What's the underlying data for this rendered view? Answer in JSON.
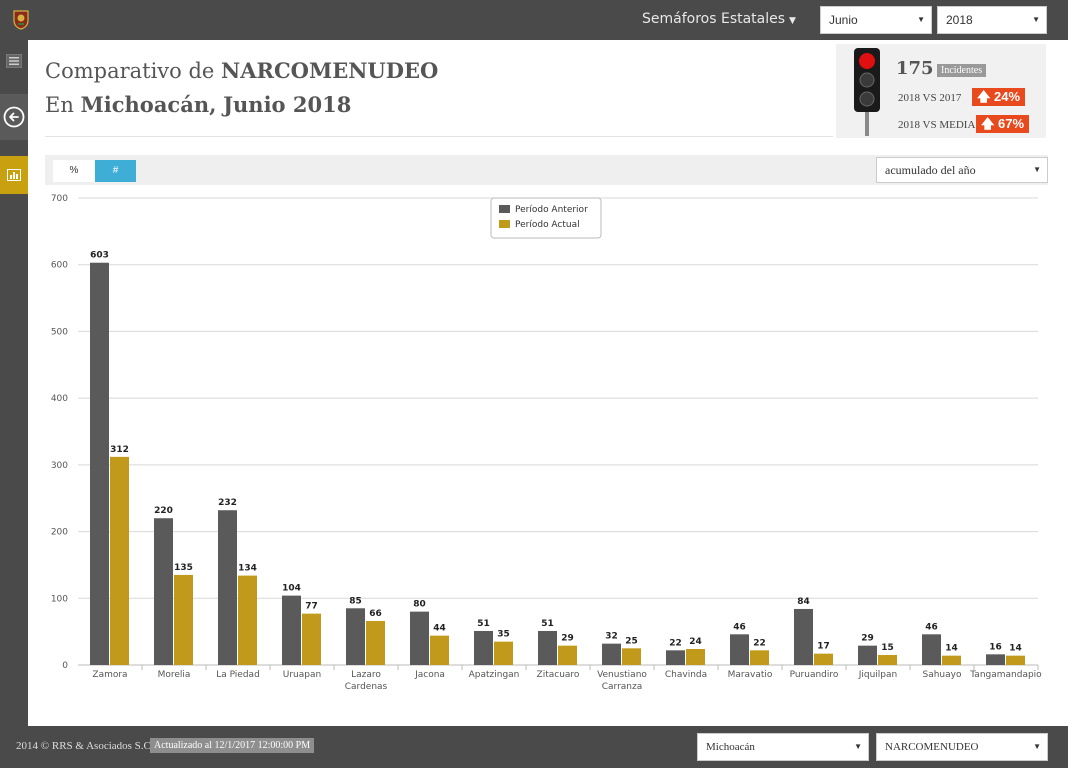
{
  "topbar": {
    "nav_label": "Semáforos Estatales",
    "month": "Junio",
    "year": "2018"
  },
  "header": {
    "title_prefix": "Comparativo de ",
    "crime": "NARCOMENUDEO",
    "location_prefix": "En ",
    "location": "Michoacán,",
    "period": "Junio 2018"
  },
  "semaforo": {
    "count": "175",
    "count_badge": "Incidentes",
    "vs_year_label": "2018 VS 2017",
    "vs_year_pct": "24%",
    "vs_mean_label": "2018 VS MEDIA",
    "vs_mean_pct": "67%",
    "light": "red"
  },
  "toolbar": {
    "tab_percent": "%",
    "tab_number": "#",
    "accumulation": "acumulado del año"
  },
  "footer": {
    "copyright": "2014 © RRS & Asociados S.C.",
    "updated": "Actualizado al 12/1/2017 12:00:00 PM",
    "state": "Michoacán",
    "crime": "NARCOMENUDEO"
  },
  "chart_data": {
    "type": "bar",
    "categories": [
      "Zamora",
      "Morelia",
      "La Piedad",
      "Uruapan",
      "Lazaro Cardenas",
      "Jacona",
      "Apatzingan",
      "Zitacuaro",
      "Venustiano Carranza",
      "Chavinda",
      "Maravatio",
      "Puruandiro",
      "Jiquilpan",
      "Sahuayo",
      "Tangamandapio"
    ],
    "series": [
      {
        "name": "Período Anterior",
        "color": "#5a5a5a",
        "values": [
          603,
          220,
          232,
          104,
          85,
          80,
          51,
          51,
          32,
          22,
          46,
          84,
          29,
          46,
          16
        ]
      },
      {
        "name": "Período Actual",
        "color": "#c19a1b",
        "values": [
          312,
          135,
          134,
          77,
          66,
          44,
          35,
          29,
          25,
          24,
          22,
          17,
          15,
          14,
          14
        ]
      }
    ],
    "ylim": [
      0,
      700
    ],
    "yticks": [
      0,
      100,
      200,
      300,
      400,
      500,
      600,
      700
    ],
    "grid": true,
    "legend_position": "top-center"
  },
  "colors": {
    "bar_dark": "#5a5a5a",
    "bar_gold": "#c19a1b",
    "alert": "#e8491d",
    "active_tab": "#3faed6",
    "rail_active": "#c8a010"
  }
}
